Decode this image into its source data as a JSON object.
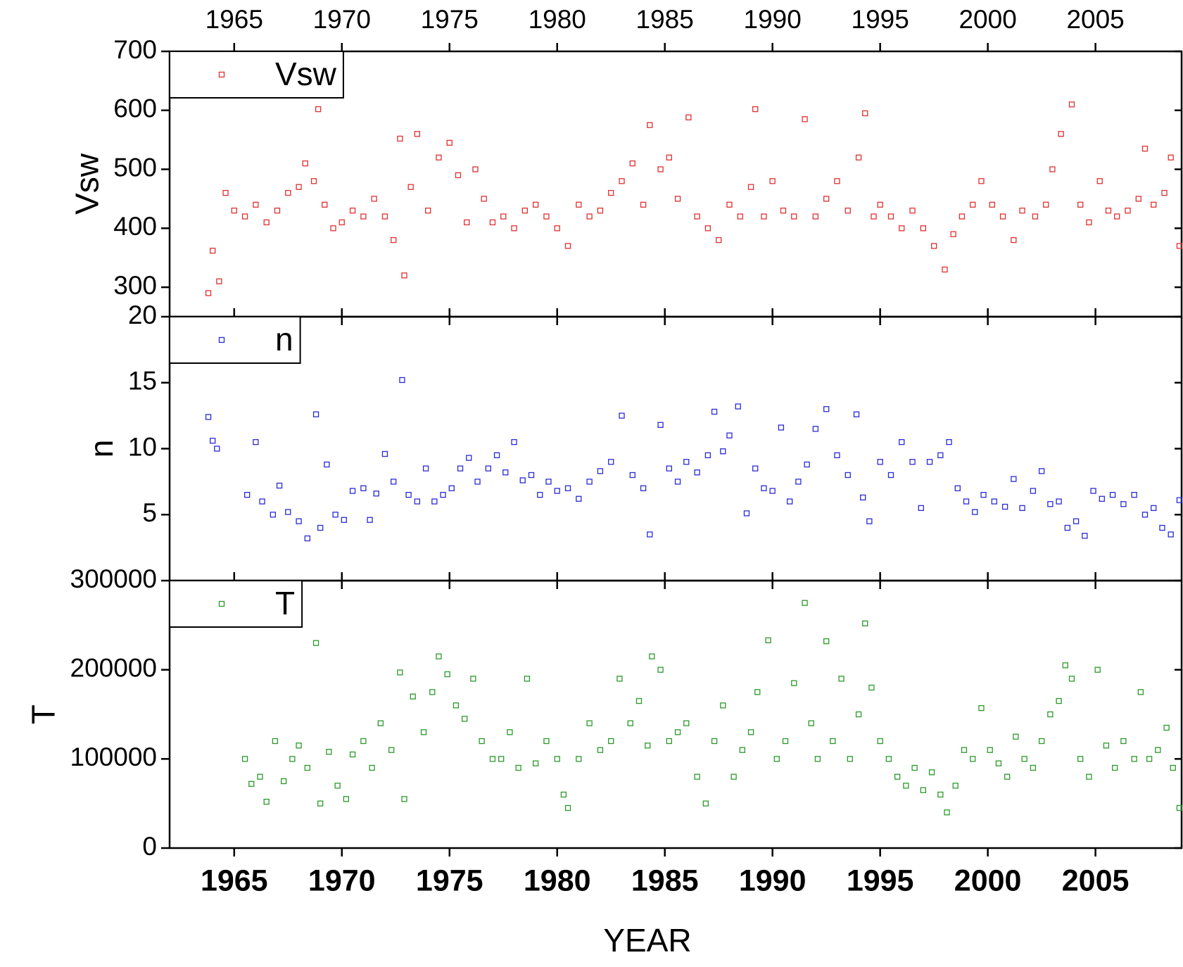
{
  "chart_data": [
    {
      "type": "scatter",
      "ylabel": "Vsw",
      "legend": "upper left",
      "xlim": [
        1962,
        2009
      ],
      "xticks": [
        1965,
        1970,
        1975,
        1980,
        1985,
        1990,
        1995,
        2000,
        2005
      ],
      "ylim": [
        250,
        700
      ],
      "yticks": [
        300,
        400,
        500,
        600,
        700
      ],
      "x": [
        1963.8,
        1964.0,
        1964.3,
        1964.6,
        1965.0,
        1965.5,
        1966.0,
        1966.5,
        1967.0,
        1967.5,
        1968.0,
        1968.3,
        1968.7,
        1968.9,
        1969.2,
        1969.6,
        1970.0,
        1970.5,
        1971.0,
        1971.5,
        1972.0,
        1972.4,
        1972.7,
        1972.9,
        1973.2,
        1973.5,
        1974.0,
        1974.5,
        1975.0,
        1975.4,
        1975.8,
        1976.2,
        1976.6,
        1977.0,
        1977.5,
        1978.0,
        1978.5,
        1979.0,
        1979.5,
        1980.0,
        1980.5,
        1981.0,
        1981.5,
        1982.0,
        1982.5,
        1983.0,
        1983.5,
        1984.0,
        1984.3,
        1984.8,
        1985.2,
        1985.6,
        1986.1,
        1986.5,
        1987.0,
        1987.5,
        1988.0,
        1988.5,
        1989.0,
        1989.2,
        1989.6,
        1990.0,
        1990.5,
        1991.0,
        1991.5,
        1992.0,
        1992.5,
        1993.0,
        1993.5,
        1994.0,
        1994.3,
        1994.7,
        1995.0,
        1995.5,
        1996.0,
        1996.5,
        1997.0,
        1997.5,
        1998.0,
        1998.4,
        1998.8,
        1999.3,
        1999.7,
        2000.2,
        2000.7,
        2001.2,
        2001.6,
        2002.2,
        2002.7,
        2003.0,
        2003.4,
        2003.9,
        2004.3,
        2004.7,
        2005.2,
        2005.6,
        2006.0,
        2006.5,
        2007.0,
        2007.3,
        2007.7,
        2008.2,
        2008.5,
        2008.9
      ],
      "series": [
        {
          "name": "Vsw",
          "color": "#e03030",
          "values": [
            290,
            362,
            310,
            460,
            430,
            420,
            440,
            410,
            430,
            460,
            470,
            510,
            480,
            602,
            440,
            400,
            410,
            430,
            420,
            450,
            420,
            380,
            552,
            320,
            470,
            560,
            430,
            520,
            545,
            490,
            410,
            500,
            450,
            410,
            420,
            400,
            430,
            440,
            420,
            400,
            370,
            440,
            420,
            430,
            460,
            480,
            510,
            440,
            575,
            500,
            520,
            450,
            588,
            420,
            400,
            380,
            440,
            420,
            470,
            602,
            420,
            480,
            430,
            420,
            585,
            420,
            450,
            480,
            430,
            520,
            595,
            420,
            440,
            420,
            400,
            430,
            400,
            370,
            330,
            390,
            420,
            440,
            480,
            440,
            420,
            380,
            430,
            420,
            440,
            500,
            560,
            610,
            440,
            410,
            480,
            430,
            420,
            430,
            450,
            535,
            440,
            460,
            520,
            370
          ]
        }
      ]
    },
    {
      "type": "scatter",
      "ylabel": "n",
      "legend": "upper left",
      "xlim": [
        1962,
        2009
      ],
      "xticks": [
        1965,
        1970,
        1975,
        1980,
        1985,
        1990,
        1995,
        2000,
        2005
      ],
      "ylim": [
        0,
        20
      ],
      "yticks": [
        5,
        10,
        15,
        20
      ],
      "x": [
        1963.8,
        1964.0,
        1964.2,
        1965.6,
        1966.0,
        1966.3,
        1966.8,
        1967.1,
        1967.5,
        1968.0,
        1968.4,
        1968.8,
        1969.0,
        1969.3,
        1969.7,
        1970.1,
        1970.5,
        1971.0,
        1971.3,
        1971.6,
        1972.0,
        1972.4,
        1972.8,
        1973.1,
        1973.5,
        1973.9,
        1974.3,
        1974.7,
        1975.1,
        1975.5,
        1975.9,
        1976.3,
        1976.8,
        1977.2,
        1977.6,
        1978.0,
        1978.4,
        1978.8,
        1979.2,
        1979.6,
        1980.0,
        1980.5,
        1981.0,
        1981.5,
        1982.0,
        1982.5,
        1983.0,
        1983.5,
        1984.0,
        1984.3,
        1984.8,
        1985.2,
        1985.6,
        1986.0,
        1986.5,
        1987.0,
        1987.3,
        1987.7,
        1988.0,
        1988.4,
        1988.8,
        1989.2,
        1989.6,
        1990.0,
        1990.4,
        1990.8,
        1991.2,
        1991.6,
        1992.0,
        1992.5,
        1993.0,
        1993.5,
        1993.9,
        1994.2,
        1994.5,
        1995.0,
        1995.5,
        1996.0,
        1996.5,
        1996.9,
        1997.3,
        1997.8,
        1998.2,
        1998.6,
        1999.0,
        1999.4,
        1999.8,
        2000.3,
        2000.8,
        2001.2,
        2001.6,
        2002.1,
        2002.5,
        2002.9,
        2003.3,
        2003.7,
        2004.1,
        2004.5,
        2004.9,
        2005.3,
        2005.8,
        2006.3,
        2006.8,
        2007.3,
        2007.7,
        2008.1,
        2008.5,
        2008.9
      ],
      "series": [
        {
          "name": "n",
          "color": "#2a2ad8",
          "values": [
            12.4,
            10.6,
            10.0,
            6.5,
            10.5,
            6.0,
            5.0,
            7.2,
            5.2,
            4.5,
            3.2,
            12.6,
            4.0,
            8.8,
            5.0,
            4.6,
            6.8,
            7.0,
            4.6,
            6.6,
            9.6,
            7.5,
            15.2,
            6.5,
            6.0,
            8.5,
            6.0,
            6.5,
            7.0,
            8.5,
            9.3,
            7.5,
            8.5,
            9.5,
            8.2,
            10.5,
            7.6,
            8.0,
            6.5,
            7.5,
            6.8,
            7.0,
            6.2,
            7.5,
            8.3,
            9.0,
            12.5,
            8.0,
            7.0,
            3.5,
            11.8,
            8.5,
            7.5,
            9.0,
            8.2,
            9.5,
            12.8,
            9.8,
            11.0,
            13.2,
            5.1,
            8.5,
            7.0,
            6.8,
            11.6,
            6.0,
            7.5,
            8.8,
            11.5,
            13.0,
            9.5,
            8.0,
            12.6,
            6.3,
            4.5,
            9.0,
            8.0,
            10.5,
            9.0,
            5.5,
            9.0,
            9.5,
            10.5,
            7.0,
            6.0,
            5.2,
            6.5,
            6.0,
            5.6,
            7.7,
            5.5,
            6.8,
            8.3,
            5.8,
            6.0,
            4.0,
            4.5,
            3.4,
            6.8,
            6.2,
            6.5,
            5.8,
            6.5,
            5.0,
            5.5,
            4.0,
            3.5,
            6.1
          ]
        }
      ]
    },
    {
      "type": "scatter",
      "ylabel": "T",
      "xlabel": "YEAR",
      "legend": "upper left",
      "xlim": [
        1962,
        2009
      ],
      "xticks": [
        1965,
        1970,
        1975,
        1980,
        1985,
        1990,
        1995,
        2000,
        2005
      ],
      "ylim": [
        0,
        300000
      ],
      "yticks": [
        0,
        100000,
        200000,
        300000
      ],
      "x": [
        1965.5,
        1965.8,
        1966.2,
        1966.5,
        1966.9,
        1967.3,
        1967.7,
        1968.0,
        1968.4,
        1968.8,
        1969.0,
        1969.4,
        1969.8,
        1970.2,
        1970.5,
        1971.0,
        1971.4,
        1971.8,
        1972.3,
        1972.7,
        1972.9,
        1973.3,
        1973.8,
        1974.2,
        1974.5,
        1974.9,
        1975.3,
        1975.7,
        1976.1,
        1976.5,
        1977.0,
        1977.4,
        1977.8,
        1978.2,
        1978.6,
        1979.0,
        1979.5,
        1980.0,
        1980.3,
        1980.5,
        1981.0,
        1981.5,
        1982.0,
        1982.5,
        1982.9,
        1983.4,
        1983.8,
        1984.2,
        1984.4,
        1984.8,
        1985.2,
        1985.6,
        1986.0,
        1986.5,
        1986.9,
        1987.3,
        1987.7,
        1988.2,
        1988.6,
        1989.0,
        1989.3,
        1989.8,
        1990.2,
        1990.6,
        1991.0,
        1991.5,
        1991.8,
        1992.1,
        1992.5,
        1992.8,
        1993.2,
        1993.6,
        1994.0,
        1994.3,
        1994.6,
        1995.0,
        1995.4,
        1995.8,
        1996.2,
        1996.6,
        1997.0,
        1997.4,
        1997.8,
        1998.1,
        1998.5,
        1998.9,
        1999.3,
        1999.7,
        2000.1,
        2000.5,
        2000.9,
        2001.3,
        2001.7,
        2002.1,
        2002.5,
        2002.9,
        2003.3,
        2003.6,
        2003.9,
        2004.3,
        2004.7,
        2005.1,
        2005.5,
        2005.9,
        2006.3,
        2006.8,
        2007.1,
        2007.5,
        2007.9,
        2008.3,
        2008.6,
        2008.9
      ],
      "series": [
        {
          "name": "T",
          "color": "#2a9a2a",
          "values": [
            100000,
            72000,
            80000,
            52000,
            120000,
            75000,
            100000,
            115000,
            90000,
            230000,
            50000,
            108000,
            70000,
            55000,
            105000,
            120000,
            90000,
            140000,
            110000,
            197000,
            55000,
            170000,
            130000,
            175000,
            215000,
            195000,
            160000,
            145000,
            190000,
            120000,
            100000,
            100000,
            130000,
            90000,
            190000,
            95000,
            120000,
            100000,
            60000,
            45000,
            100000,
            140000,
            110000,
            120000,
            190000,
            140000,
            165000,
            115000,
            215000,
            200000,
            120000,
            130000,
            140000,
            80000,
            50000,
            120000,
            160000,
            80000,
            110000,
            130000,
            175000,
            233000,
            100000,
            120000,
            185000,
            275000,
            140000,
            100000,
            232000,
            120000,
            190000,
            100000,
            150000,
            252000,
            180000,
            120000,
            100000,
            80000,
            70000,
            90000,
            65000,
            85000,
            60000,
            40000,
            70000,
            110000,
            100000,
            157000,
            110000,
            95000,
            80000,
            125000,
            100000,
            90000,
            120000,
            150000,
            165000,
            205000,
            190000,
            100000,
            80000,
            200000,
            115000,
            90000,
            120000,
            100000,
            175000,
            100000,
            110000,
            135000,
            90000,
            45000
          ]
        }
      ]
    }
  ]
}
